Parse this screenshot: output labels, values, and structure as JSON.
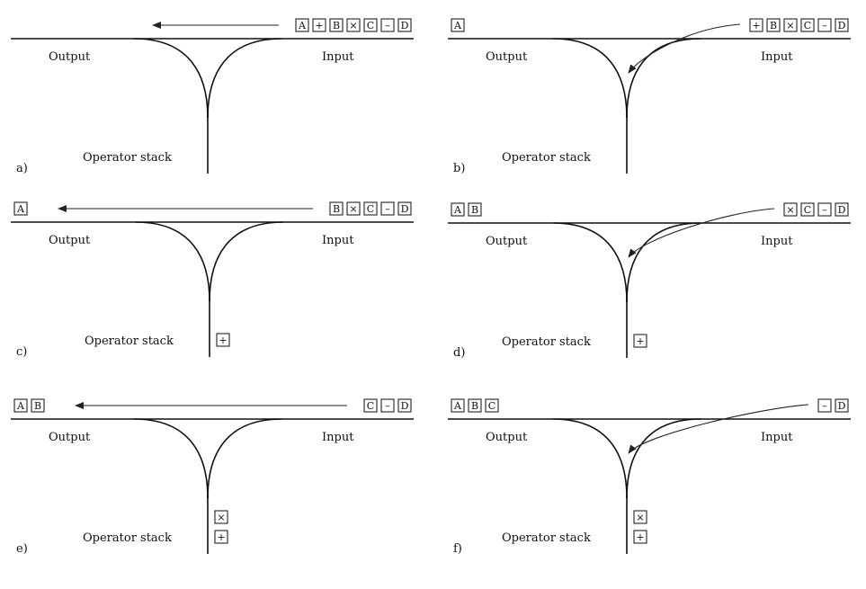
{
  "panels": [
    {
      "id": "a",
      "label": "a)",
      "output_label": "Output",
      "input_label": "Input",
      "stack_label": "Operator stack",
      "output_tokens": [],
      "input_tokens": [
        "A",
        "+",
        "B",
        "×",
        "C",
        "–",
        "D"
      ],
      "stack_tokens": [],
      "arrow": "straight-left"
    },
    {
      "id": "b",
      "label": "b)",
      "output_label": "Output",
      "input_label": "Input",
      "stack_label": "Operator stack",
      "output_tokens": [
        "A"
      ],
      "input_tokens": [
        "+",
        "B",
        "×",
        "C",
        "–",
        "D"
      ],
      "stack_tokens": [],
      "arrow": "curve-down"
    },
    {
      "id": "c",
      "label": "c)",
      "output_label": "Output",
      "input_label": "Input",
      "stack_label": "Operator stack",
      "output_tokens": [
        "A"
      ],
      "input_tokens": [
        "B",
        "×",
        "C",
        "–",
        "D"
      ],
      "stack_tokens": [
        "+"
      ],
      "arrow": "straight-left"
    },
    {
      "id": "d",
      "label": "d)",
      "output_label": "Output",
      "input_label": "Input",
      "stack_label": "Operator stack",
      "output_tokens": [
        "A",
        "B"
      ],
      "input_tokens": [
        "×",
        "C",
        "–",
        "D"
      ],
      "stack_tokens": [
        "+"
      ],
      "arrow": "curve-down"
    },
    {
      "id": "e",
      "label": "e)",
      "output_label": "Output",
      "input_label": "Input",
      "stack_label": "Operator stack",
      "output_tokens": [
        "A",
        "B"
      ],
      "input_tokens": [
        "C",
        "–",
        "D"
      ],
      "stack_tokens": [
        "×",
        "+"
      ],
      "arrow": "straight-left"
    },
    {
      "id": "f",
      "label": "f)",
      "output_label": "Output",
      "input_label": "Input",
      "stack_label": "Operator stack",
      "output_tokens": [
        "A",
        "B",
        "C"
      ],
      "input_tokens": [
        "–",
        "D"
      ],
      "stack_tokens": [
        "×",
        "+"
      ],
      "arrow": "curve-down"
    }
  ]
}
